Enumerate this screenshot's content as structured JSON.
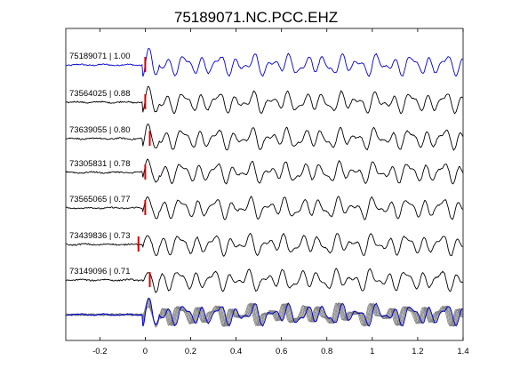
{
  "chart_data": {
    "type": "line",
    "title": "75189071.NC.PCC.EHZ",
    "xlabel": "",
    "ylabel": "",
    "xlim": [
      -0.35,
      1.4
    ],
    "x_ticks": [
      -0.2,
      0,
      0.2,
      0.4,
      0.6,
      0.8,
      1,
      1.2,
      1.4
    ],
    "x_tick_labels": [
      "-0.2",
      "0",
      "0.2",
      "0.4",
      "0.6",
      "0.8",
      "1",
      "1.2",
      "1.4"
    ],
    "grid": false,
    "colors": {
      "reference": "#0000cc",
      "trace": "#000000",
      "stack": "#808080",
      "pick": "#dd0000"
    },
    "series": [
      {
        "label": "75189071 | 1.00",
        "event_id": "75189071",
        "correlation": 1.0,
        "pick_time": 0.0,
        "color": "#0000cc"
      },
      {
        "label": "73564025 | 0.88",
        "event_id": "73564025",
        "correlation": 0.88,
        "pick_time": 0.0,
        "color": "#000000"
      },
      {
        "label": "73639055 | 0.80",
        "event_id": "73639055",
        "correlation": 0.8,
        "pick_time": 0.02,
        "color": "#000000"
      },
      {
        "label": "73305831 | 0.78",
        "event_id": "73305831",
        "correlation": 0.78,
        "pick_time": 0.0,
        "color": "#000000"
      },
      {
        "label": "73565065 | 0.77",
        "event_id": "73565065",
        "correlation": 0.77,
        "pick_time": 0.0,
        "color": "#000000"
      },
      {
        "label": "73439836 | 0.73",
        "event_id": "73439836",
        "correlation": 0.73,
        "pick_time": -0.03,
        "color": "#000000"
      },
      {
        "label": "73149096 | 0.71",
        "event_id": "73149096",
        "correlation": 0.71,
        "pick_time": 0.02,
        "color": "#000000"
      }
    ],
    "stack": {
      "description": "overlay of all traces"
    }
  }
}
